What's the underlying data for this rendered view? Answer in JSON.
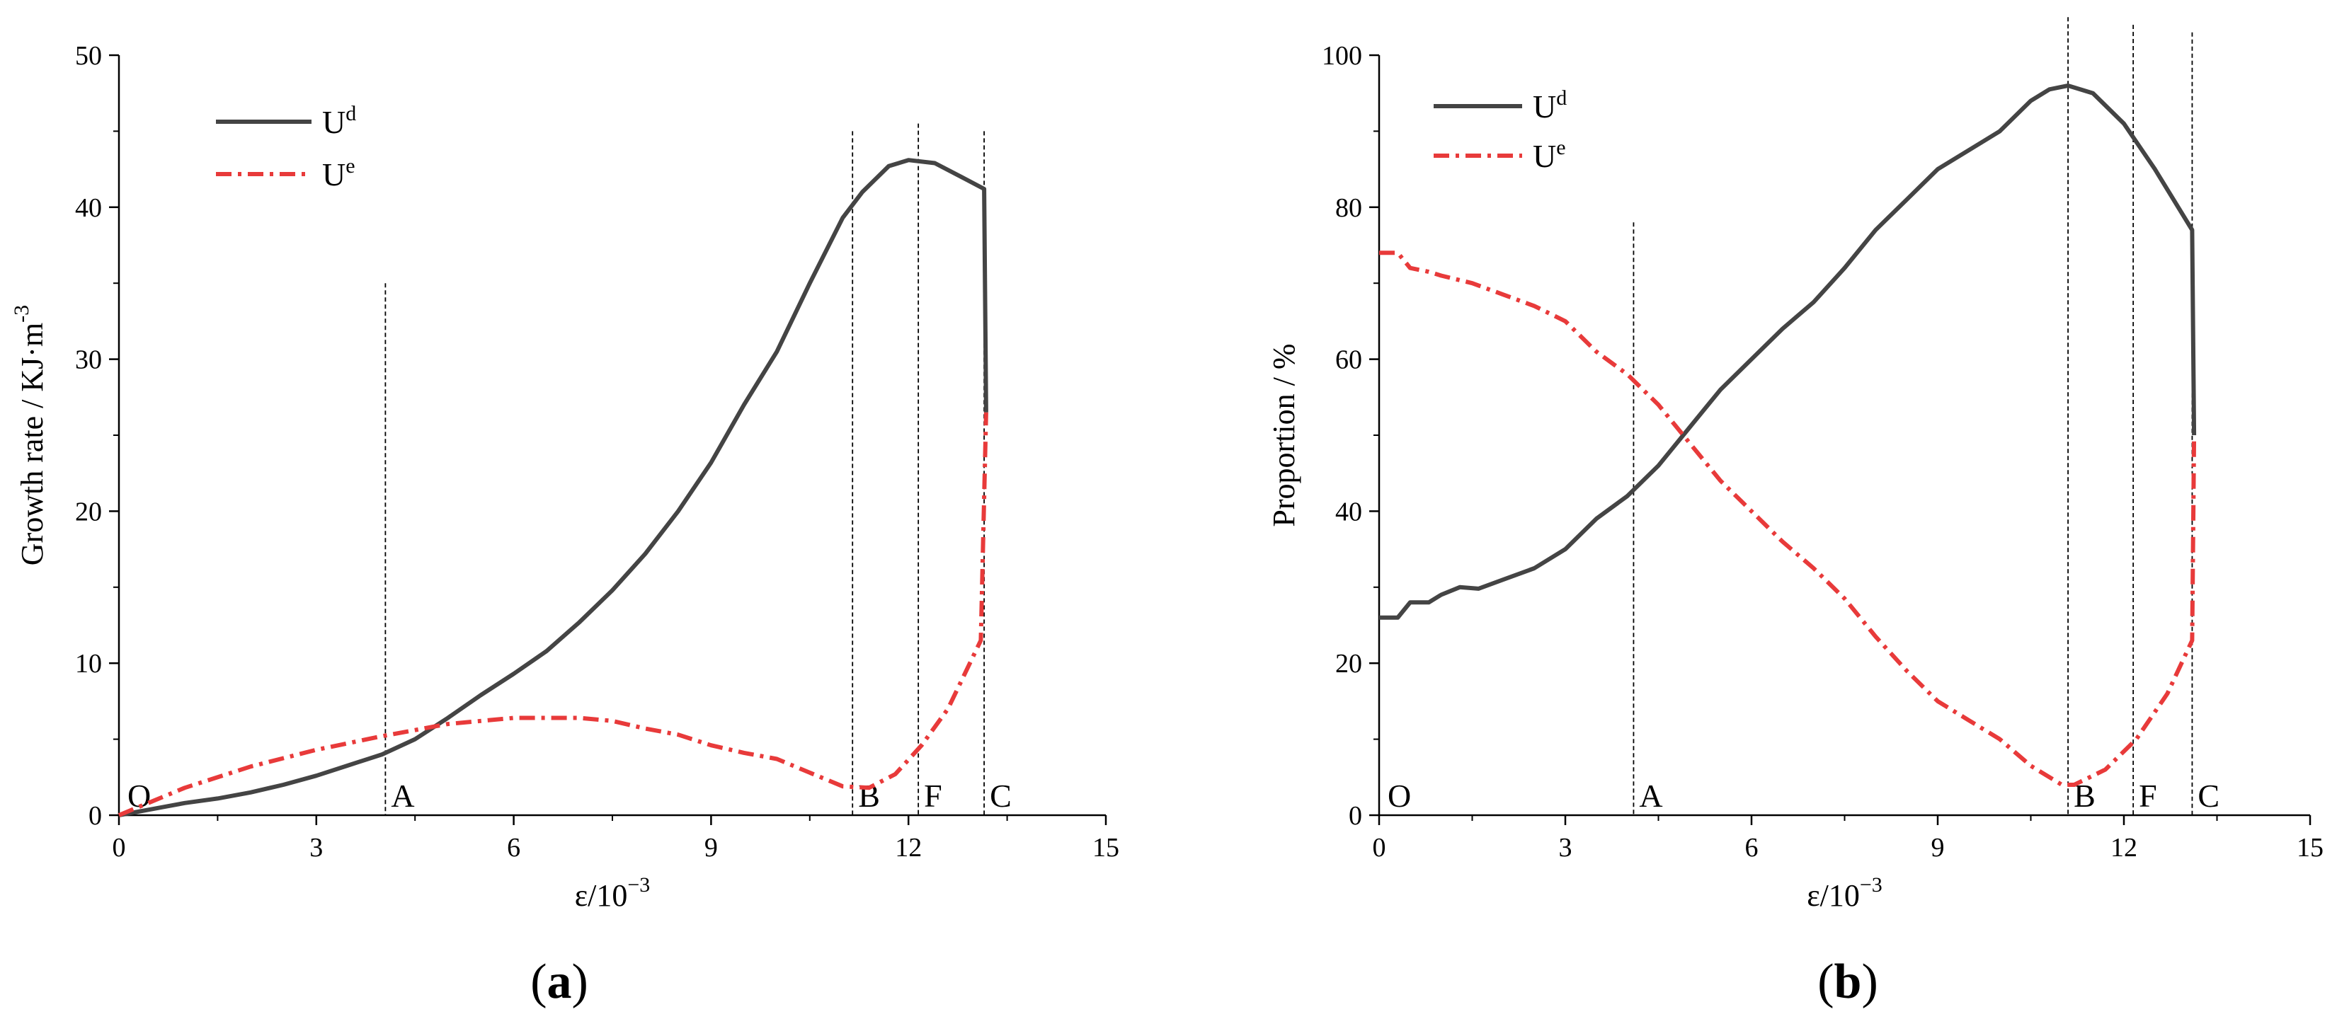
{
  "chart_data": [
    {
      "type": "line",
      "panel_label": "a",
      "xlabel": "ε/10",
      "xlabel_sup": "−3",
      "ylabel": "Growth rate / KJ·m",
      "ylabel_sup": "-3",
      "xlim": [
        0,
        15
      ],
      "ylim": [
        0,
        50
      ],
      "xticks": [
        0,
        3,
        6,
        9,
        12,
        15
      ],
      "yticks": [
        0,
        10,
        20,
        30,
        40,
        50
      ],
      "legend_position": "top-left",
      "series": [
        {
          "name": "U",
          "name_sup": "d",
          "color": "#444444",
          "style": "solid",
          "points": [
            [
              0,
              0
            ],
            [
              0.5,
              0.4
            ],
            [
              1,
              0.8
            ],
            [
              1.5,
              1.1
            ],
            [
              2,
              1.5
            ],
            [
              2.5,
              2
            ],
            [
              3,
              2.6
            ],
            [
              3.5,
              3.3
            ],
            [
              4,
              4
            ],
            [
              4.5,
              5
            ],
            [
              5,
              6.4
            ],
            [
              5.5,
              7.9
            ],
            [
              6,
              9.3
            ],
            [
              6.5,
              10.8
            ],
            [
              7,
              12.7
            ],
            [
              7.5,
              14.8
            ],
            [
              8,
              17.2
            ],
            [
              8.5,
              20
            ],
            [
              9,
              23.2
            ],
            [
              9.5,
              27
            ],
            [
              10,
              30.5
            ],
            [
              10.5,
              35
            ],
            [
              11,
              39.3
            ],
            [
              11.3,
              41
            ],
            [
              11.7,
              42.7
            ],
            [
              12,
              43.1
            ],
            [
              12.4,
              42.9
            ],
            [
              12.8,
              42
            ],
            [
              13.15,
              41.2
            ],
            [
              13.18,
              26.5
            ]
          ]
        },
        {
          "name": "U",
          "name_sup": "e",
          "color": "#e83a3a",
          "style": "dashdot",
          "points": [
            [
              0,
              0
            ],
            [
              1,
              1.8
            ],
            [
              2,
              3.2
            ],
            [
              3,
              4.3
            ],
            [
              4,
              5.2
            ],
            [
              5,
              6
            ],
            [
              5.5,
              6.2
            ],
            [
              6,
              6.4
            ],
            [
              6.5,
              6.4
            ],
            [
              7,
              6.4
            ],
            [
              7.5,
              6.2
            ],
            [
              8,
              5.7
            ],
            [
              8.5,
              5.3
            ],
            [
              9,
              4.6
            ],
            [
              9.5,
              4.1
            ],
            [
              10,
              3.7
            ],
            [
              10.5,
              2.8
            ],
            [
              11,
              1.9
            ],
            [
              11.4,
              1.8
            ],
            [
              11.8,
              2.7
            ],
            [
              12.2,
              4.6
            ],
            [
              12.6,
              7
            ],
            [
              13.1,
              11.5
            ],
            [
              13.18,
              26.5
            ]
          ]
        }
      ],
      "stage_lines": [
        {
          "label": "A",
          "x": 4.05,
          "top": 35
        },
        {
          "label": "B",
          "x": 11.15,
          "top": 45
        },
        {
          "label": "F",
          "x": 12.15,
          "top": 45.5
        },
        {
          "label": "C",
          "x": 13.15,
          "top": 45
        }
      ],
      "origin_label": "O"
    },
    {
      "type": "line",
      "panel_label": "b",
      "xlabel": "ε/10",
      "xlabel_sup": "−3",
      "ylabel": "Proportion / %",
      "ylabel_sup": "",
      "xlim": [
        0,
        15
      ],
      "ylim": [
        0,
        100
      ],
      "xticks": [
        0,
        3,
        6,
        9,
        12,
        15
      ],
      "yticks": [
        0,
        20,
        40,
        60,
        80,
        100
      ],
      "legend_position": "top-right",
      "series": [
        {
          "name": "U",
          "name_sup": "d",
          "color": "#444444",
          "style": "solid",
          "points": [
            [
              0,
              26
            ],
            [
              0.3,
              26
            ],
            [
              0.5,
              28
            ],
            [
              0.8,
              28
            ],
            [
              1,
              29
            ],
            [
              1.3,
              30
            ],
            [
              1.6,
              29.8
            ],
            [
              2,
              31
            ],
            [
              2.5,
              32.5
            ],
            [
              3,
              35
            ],
            [
              3.5,
              39
            ],
            [
              4,
              42
            ],
            [
              4.5,
              46
            ],
            [
              5,
              51
            ],
            [
              5.5,
              56
            ],
            [
              6,
              60
            ],
            [
              6.5,
              64
            ],
            [
              7,
              67.5
            ],
            [
              7.5,
              72
            ],
            [
              8,
              77
            ],
            [
              8.5,
              81
            ],
            [
              9,
              85
            ],
            [
              9.5,
              87.5
            ],
            [
              10,
              90
            ],
            [
              10.5,
              94
            ],
            [
              10.8,
              95.5
            ],
            [
              11.1,
              96
            ],
            [
              11.5,
              95
            ],
            [
              12,
              91
            ],
            [
              12.5,
              85
            ],
            [
              13.1,
              77
            ],
            [
              13.13,
              50
            ]
          ]
        },
        {
          "name": "U",
          "name_sup": "e",
          "color": "#e83a3a",
          "style": "dashdot",
          "points": [
            [
              0,
              74
            ],
            [
              0.3,
              74
            ],
            [
              0.5,
              72
            ],
            [
              0.8,
              71.5
            ],
            [
              1,
              71
            ],
            [
              1.5,
              70
            ],
            [
              2,
              68.5
            ],
            [
              2.5,
              67
            ],
            [
              3,
              65
            ],
            [
              3.5,
              61
            ],
            [
              4,
              58
            ],
            [
              4.5,
              54
            ],
            [
              5,
              49
            ],
            [
              5.5,
              44
            ],
            [
              6,
              40
            ],
            [
              6.5,
              36
            ],
            [
              7,
              32.5
            ],
            [
              7.5,
              28.5
            ],
            [
              8,
              23.5
            ],
            [
              8.5,
              19
            ],
            [
              9,
              15
            ],
            [
              9.5,
              12.5
            ],
            [
              10,
              10
            ],
            [
              10.5,
              6.5
            ],
            [
              11,
              4
            ],
            [
              11.2,
              4
            ],
            [
              11.7,
              6
            ],
            [
              12.2,
              10
            ],
            [
              12.7,
              16
            ],
            [
              13.1,
              23
            ],
            [
              13.13,
              50
            ]
          ]
        }
      ],
      "stage_lines": [
        {
          "label": "A",
          "x": 4.1,
          "top": 78
        },
        {
          "label": "B",
          "x": 11.1,
          "top": 105
        },
        {
          "label": "F",
          "x": 12.15,
          "top": 104
        },
        {
          "label": "C",
          "x": 13.1,
          "top": 103
        }
      ],
      "origin_label": "O"
    }
  ]
}
